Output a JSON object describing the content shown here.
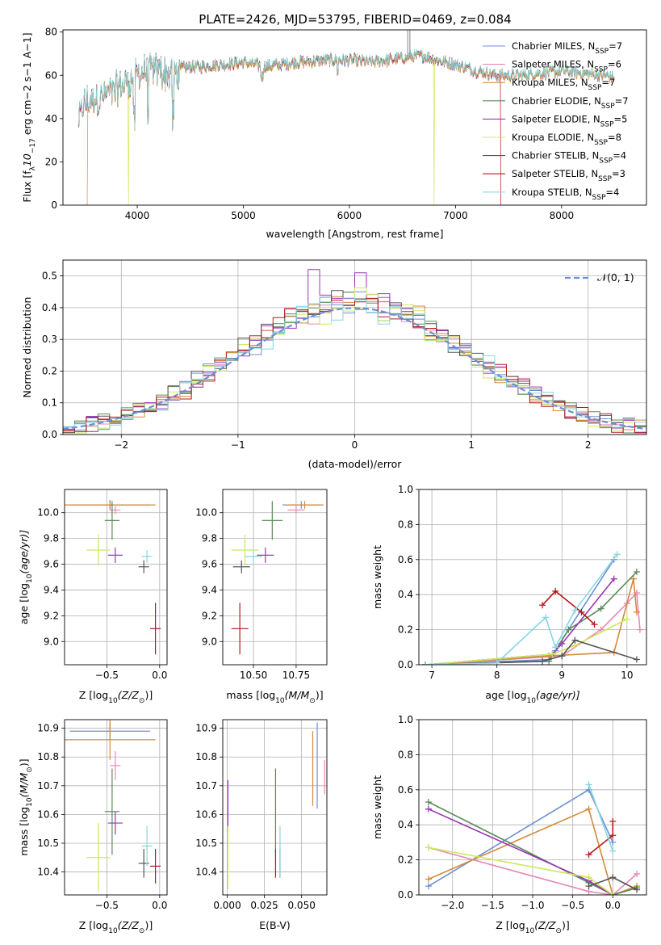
{
  "figure": {
    "title": "PLATE=2426, MJD=53795, FIBERID=0469, z=0.084",
    "models": [
      {
        "name": "Chabrier MILES, N_SSP=7",
        "base": "Chabrier MILES, N",
        "sub": "SSP",
        "tail": "=7",
        "color": "#6f8fd2"
      },
      {
        "name": "Salpeter MILES, N_SSP=6",
        "base": "Salpeter MILES, N",
        "sub": "SSP",
        "tail": "=6",
        "color": "#e58ab7"
      },
      {
        "name": "Kroupa MILES, N_SSP=7",
        "base": "Kroupa MILES, N",
        "sub": "SSP",
        "tail": "=7",
        "color": "#d48a3a"
      },
      {
        "name": "Chabrier ELODIE, N_SSP=7",
        "base": "Chabrier ELODIE, N",
        "sub": "SSP",
        "tail": "=7",
        "color": "#5a8a5a"
      },
      {
        "name": "Salpeter ELODIE, N_SSP=5",
        "base": "Salpeter ELODIE, N",
        "sub": "SSP",
        "tail": "=5",
        "color": "#9a35b5"
      },
      {
        "name": "Kroupa ELODIE, N_SSP=8",
        "base": "Kroupa ELODIE, N",
        "sub": "SSP",
        "tail": "=8",
        "color": "#cde85e"
      },
      {
        "name": "Chabrier STELIB, N_SSP=4",
        "base": "Chabrier STELIB, N",
        "sub": "SSP",
        "tail": "=4",
        "color": "#555555"
      },
      {
        "name": "Salpeter STELIB, N_SSP=3",
        "base": "Salpeter STELIB, N",
        "sub": "SSP",
        "tail": "=3",
        "color": "#b5191c"
      },
      {
        "name": "Kroupa STELIB, N_SSP=4",
        "base": "Kroupa STELIB, N",
        "sub": "SSP",
        "tail": "=4",
        "color": "#86d6e0"
      }
    ]
  },
  "chart_data": [
    {
      "id": "spectrum",
      "type": "line",
      "xlabel": "wavelength [Angstrom, rest frame]",
      "ylabel_parts": {
        "a": "Flux [f",
        "b": "λ",
        "c": "10",
        "d": "−17",
        "e": " erg cm",
        "f": "−2",
        "g": " s",
        "h": "−1",
        "i": " A",
        "j": "−1",
        "k": "]"
      },
      "xlim": [
        3300,
        8800
      ],
      "ylim": [
        0,
        81
      ],
      "xticks": [
        4000,
        5000,
        6000,
        7000,
        8000
      ],
      "yticks": [
        0,
        20,
        40,
        60,
        80
      ],
      "continuum": [
        [
          3450,
          40
        ],
        [
          3500,
          48
        ],
        [
          3600,
          50
        ],
        [
          3700,
          52
        ],
        [
          3800,
          55
        ],
        [
          3900,
          58
        ],
        [
          4000,
          62
        ],
        [
          4100,
          63
        ],
        [
          4200,
          64
        ],
        [
          4300,
          62
        ],
        [
          4400,
          63
        ],
        [
          4500,
          64
        ],
        [
          4600,
          64
        ],
        [
          4800,
          65
        ],
        [
          5000,
          66
        ],
        [
          5200,
          64
        ],
        [
          5500,
          66
        ],
        [
          5800,
          67
        ],
        [
          6000,
          67
        ],
        [
          6200,
          66
        ],
        [
          6500,
          68
        ],
        [
          6700,
          69
        ],
        [
          6900,
          66
        ],
        [
          7000,
          65
        ],
        [
          7200,
          62
        ],
        [
          7400,
          60
        ],
        [
          7600,
          60
        ],
        [
          7800,
          61
        ],
        [
          8000,
          62
        ],
        [
          8200,
          61
        ],
        [
          8400,
          60
        ],
        [
          8500,
          59
        ]
      ],
      "drops": [
        {
          "x": 3530,
          "model": 2
        },
        {
          "x": 3920,
          "model": 5
        },
        {
          "x": 6800,
          "model": 5
        },
        {
          "x": 7430,
          "model": 7
        }
      ]
    },
    {
      "id": "residuals",
      "type": "histogram",
      "xlabel": "(data-model)/error",
      "ylabel": "Normed distribution",
      "xlim": [
        -2.5,
        2.5
      ],
      "ylim": [
        0,
        0.55
      ],
      "xticks": [
        -2,
        -1,
        0,
        1,
        2
      ],
      "yticks": [
        0,
        0.1,
        0.2,
        0.3,
        0.4,
        0.5
      ],
      "bin_width": 0.1,
      "reference_curve": {
        "label": "𝒩(0, 1)",
        "mean": 0,
        "sigma": 1,
        "color": "#6a8fd8"
      }
    },
    {
      "id": "age_vs_Z",
      "type": "errorbar",
      "xlabel_parts": {
        "a": "Z [log",
        "b": "10",
        "c": "(Z/Z",
        "d": "⊙",
        "e": ")]"
      },
      "ylabel_parts": {
        "a": "age  [log",
        "b": "10",
        "c": "(age/yr)]"
      },
      "xlim": [
        -0.9,
        0.07
      ],
      "ylim": [
        8.82,
        10.18
      ],
      "xticks": [
        -0.5,
        0.0
      ],
      "xtick_labels": [
        "−0.5",
        "0.0"
      ],
      "yticks": [
        9.0,
        9.2,
        9.4,
        9.6,
        9.8,
        10.0
      ],
      "points": [
        {
          "m": 0,
          "x": -0.47,
          "xe": 0.38,
          "y": 10.06,
          "ye": 0.04
        },
        {
          "m": 1,
          "x": -0.42,
          "xe": 0.05,
          "y": 10.02,
          "ye": 0.03
        },
        {
          "m": 2,
          "x": -0.47,
          "xe": 0.43,
          "y": 10.06,
          "ye": 0.03
        },
        {
          "m": 3,
          "x": -0.45,
          "xe": 0.07,
          "y": 9.94,
          "ye": 0.15
        },
        {
          "m": 4,
          "x": -0.42,
          "xe": 0.07,
          "y": 9.67,
          "ye": 0.06
        },
        {
          "m": 5,
          "x": -0.58,
          "xe": 0.11,
          "y": 9.71,
          "ye": 0.12
        },
        {
          "m": 6,
          "x": -0.15,
          "xe": 0.05,
          "y": 9.58,
          "ye": 0.05
        },
        {
          "m": 7,
          "x": -0.04,
          "xe": 0.05,
          "y": 9.1,
          "ye": 0.2
        },
        {
          "m": 8,
          "x": -0.12,
          "xe": 0.05,
          "y": 9.66,
          "ye": 0.05
        }
      ]
    },
    {
      "id": "age_vs_mass",
      "type": "errorbar",
      "xlabel_parts": {
        "a": "mass [log",
        "b": "10",
        "c": "(M/M",
        "d": "⊙",
        "e": ")]"
      },
      "xlim": [
        10.32,
        10.93
      ],
      "ylim": [
        8.82,
        10.18
      ],
      "xticks": [
        10.5,
        10.75
      ],
      "xtick_labels": [
        "10.50",
        "10.75"
      ],
      "yticks": [
        9.0,
        9.2,
        9.4,
        9.6,
        9.8,
        10.0
      ],
      "points": [
        {
          "m": 0,
          "x": 10.78,
          "xe": 0.11,
          "y": 10.06,
          "ye": 0.03
        },
        {
          "m": 1,
          "x": 10.75,
          "xe": 0.05,
          "y": 10.02,
          "ye": 0.03
        },
        {
          "m": 2,
          "x": 10.8,
          "xe": 0.11,
          "y": 10.06,
          "ye": 0.03
        },
        {
          "m": 3,
          "x": 10.61,
          "xe": 0.06,
          "y": 9.94,
          "ye": 0.15
        },
        {
          "m": 4,
          "x": 10.57,
          "xe": 0.05,
          "y": 9.67,
          "ye": 0.06
        },
        {
          "m": 5,
          "x": 10.45,
          "xe": 0.08,
          "y": 9.71,
          "ye": 0.12
        },
        {
          "m": 6,
          "x": 10.43,
          "xe": 0.05,
          "y": 9.58,
          "ye": 0.05
        },
        {
          "m": 7,
          "x": 10.42,
          "xe": 0.05,
          "y": 9.1,
          "ye": 0.2
        },
        {
          "m": 8,
          "x": 10.5,
          "xe": 0.05,
          "y": 9.66,
          "ye": 0.05
        }
      ]
    },
    {
      "id": "mass_weight_vs_age",
      "type": "line",
      "xlabel_parts": {
        "a": "age  [log",
        "b": "10",
        "c": "(age/yr)]"
      },
      "ylabel": "mass weight",
      "xlim": [
        6.8,
        10.3
      ],
      "ylim": [
        0,
        1.0
      ],
      "xticks": [
        7,
        8,
        9,
        10
      ],
      "yticks": [
        0,
        0.2,
        0.4,
        0.6,
        0.8,
        1.0
      ],
      "series": [
        {
          "m": 0,
          "points": [
            [
              6.9,
              0.0
            ],
            [
              8.8,
              0.03
            ],
            [
              8.9,
              0.08
            ],
            [
              9.1,
              0.2
            ],
            [
              9.8,
              0.6
            ]
          ]
        },
        {
          "m": 1,
          "points": [
            [
              6.9,
              0.0
            ],
            [
              9.0,
              0.05
            ],
            [
              9.6,
              0.2
            ],
            [
              10.0,
              0.35
            ],
            [
              10.15,
              0.41
            ],
            [
              10.2,
              0.2
            ]
          ]
        },
        {
          "m": 2,
          "points": [
            [
              6.9,
              0.0
            ],
            [
              8.8,
              0.05
            ],
            [
              9.8,
              0.07
            ],
            [
              10.1,
              0.49
            ],
            [
              10.15,
              0.3
            ]
          ]
        },
        {
          "m": 3,
          "points": [
            [
              6.9,
              0.0
            ],
            [
              8.8,
              0.02
            ],
            [
              9.1,
              0.2
            ],
            [
              9.6,
              0.32
            ],
            [
              10.15,
              0.53
            ]
          ]
        },
        {
          "m": 4,
          "points": [
            [
              6.9,
              0.0
            ],
            [
              8.85,
              0.06
            ],
            [
              9.0,
              0.12
            ],
            [
              9.8,
              0.49
            ]
          ]
        },
        {
          "m": 5,
          "points": [
            [
              6.9,
              0.0
            ],
            [
              8.85,
              0.06
            ],
            [
              9.2,
              0.11
            ],
            [
              10.0,
              0.26
            ]
          ]
        },
        {
          "m": 6,
          "points": [
            [
              6.9,
              0.0
            ],
            [
              8.7,
              0.02
            ],
            [
              9.0,
              0.05
            ],
            [
              9.2,
              0.14
            ],
            [
              10.15,
              0.03
            ]
          ]
        },
        {
          "m": 7,
          "points": [
            [
              8.7,
              0.34
            ],
            [
              8.9,
              0.42
            ],
            [
              9.3,
              0.3
            ],
            [
              9.5,
              0.23
            ]
          ]
        },
        {
          "m": 8,
          "points": [
            [
              6.9,
              0.0
            ],
            [
              8.0,
              0.01
            ],
            [
              8.75,
              0.27
            ],
            [
              8.9,
              0.1
            ],
            [
              9.2,
              0.31
            ],
            [
              9.85,
              0.63
            ]
          ]
        }
      ]
    },
    {
      "id": "mass_vs_Z",
      "type": "errorbar",
      "xlabel_parts": {
        "a": "Z [log",
        "b": "10",
        "c": "(Z/Z",
        "d": "⊙",
        "e": ")]"
      },
      "ylabel_parts": {
        "a": "mass [log",
        "b": "10",
        "c": "(M/M",
        "d": "⊙",
        "e": ")]"
      },
      "xlim": [
        -0.9,
        0.07
      ],
      "ylim": [
        10.32,
        10.93
      ],
      "xticks": [
        -0.5,
        0.0
      ],
      "xtick_labels": [
        "−0.5",
        "0.0"
      ],
      "yticks": [
        10.4,
        10.5,
        10.6,
        10.7,
        10.8,
        10.9
      ],
      "points": [
        {
          "m": 0,
          "x": -0.47,
          "xe": 0.38,
          "y": 10.89,
          "ye": 0.03
        },
        {
          "m": 1,
          "x": -0.42,
          "xe": 0.05,
          "y": 10.77,
          "ye": 0.05
        },
        {
          "m": 2,
          "x": -0.47,
          "xe": 0.43,
          "y": 10.86,
          "ye": 0.07
        },
        {
          "m": 3,
          "x": -0.45,
          "xe": 0.07,
          "y": 10.61,
          "ye": 0.15
        },
        {
          "m": 4,
          "x": -0.42,
          "xe": 0.07,
          "y": 10.57,
          "ye": 0.04
        },
        {
          "m": 5,
          "x": -0.58,
          "xe": 0.11,
          "y": 10.45,
          "ye": 0.12
        },
        {
          "m": 6,
          "x": -0.15,
          "xe": 0.05,
          "y": 10.43,
          "ye": 0.05
        },
        {
          "m": 7,
          "x": -0.04,
          "xe": 0.05,
          "y": 10.42,
          "ye": 0.06
        },
        {
          "m": 8,
          "x": -0.12,
          "xe": 0.05,
          "y": 10.49,
          "ye": 0.07
        }
      ]
    },
    {
      "id": "mass_vs_ebv",
      "type": "errorbar",
      "xlabel": "E(B-V)",
      "xlim": [
        -0.003,
        0.067
      ],
      "ylim": [
        10.32,
        10.93
      ],
      "xticks": [
        0.0,
        0.025,
        0.05
      ],
      "xtick_labels": [
        "0.000",
        "0.025",
        "0.050"
      ],
      "yticks": [
        10.4,
        10.5,
        10.6,
        10.7,
        10.8,
        10.9
      ],
      "points": [
        {
          "m": 0,
          "x": 0.0605,
          "xe": 0,
          "y": 10.77,
          "ye": 0.15
        },
        {
          "m": 1,
          "x": 0.0655,
          "xe": 0,
          "y": 10.73,
          "ye": 0.06
        },
        {
          "m": 2,
          "x": 0.0575,
          "xe": 0,
          "y": 10.76,
          "ye": 0.13
        },
        {
          "m": 3,
          "x": 0.0325,
          "xe": 0,
          "y": 10.61,
          "ye": 0.15
        },
        {
          "m": 4,
          "x": 0.0005,
          "xe": 0,
          "y": 10.63,
          "ye": 0.09
        },
        {
          "m": 5,
          "x": 0.0005,
          "xe": 0,
          "y": 10.45,
          "ye": 0.11
        },
        {
          "m": 6,
          "x": 0.0355,
          "xe": 0,
          "y": 10.43,
          "ye": 0.05
        },
        {
          "m": 7,
          "x": 0.0325,
          "xe": 0,
          "y": 10.43,
          "ye": 0.05
        },
        {
          "m": 8,
          "x": 0.0355,
          "xe": 0,
          "y": 10.47,
          "ye": 0.09
        }
      ]
    },
    {
      "id": "mass_weight_vs_Z",
      "type": "line",
      "xlabel_parts": {
        "a": "Z [log",
        "b": "10",
        "c": "(Z/Z",
        "d": "⊙",
        "e": ")]"
      },
      "ylabel": "mass weight",
      "xlim": [
        -2.42,
        0.42
      ],
      "ylim": [
        0,
        1.0
      ],
      "xticks": [
        -2.0,
        -1.5,
        -1.0,
        -0.5,
        0.0
      ],
      "xtick_labels": [
        "−2.0",
        "−1.5",
        "−1.0",
        "−0.5",
        "0.0"
      ],
      "yticks": [
        0,
        0.2,
        0.4,
        0.6,
        0.8,
        1.0
      ],
      "series": [
        {
          "m": 0,
          "points": [
            [
              -2.3,
              0.05
            ],
            [
              -0.3,
              0.6
            ],
            [
              0.0,
              0.3
            ]
          ]
        },
        {
          "m": 1,
          "points": [
            [
              -2.3,
              0.27
            ],
            [
              -0.3,
              0.02
            ],
            [
              0.0,
              0.0
            ],
            [
              0.3,
              0.12
            ]
          ]
        },
        {
          "m": 2,
          "points": [
            [
              -2.3,
              0.09
            ],
            [
              -0.3,
              0.49
            ],
            [
              0.0,
              0.0
            ],
            [
              0.3,
              0.05
            ]
          ]
        },
        {
          "m": 3,
          "points": [
            [
              -2.3,
              0.53
            ],
            [
              -0.3,
              0.07
            ],
            [
              0.0,
              0.0
            ],
            [
              0.3,
              0.04
            ]
          ]
        },
        {
          "m": 4,
          "points": [
            [
              -2.3,
              0.49
            ],
            [
              -0.3,
              0.08
            ],
            [
              0.0,
              0.0
            ]
          ]
        },
        {
          "m": 5,
          "points": [
            [
              -2.3,
              0.27
            ],
            [
              -0.3,
              0.1
            ],
            [
              0.0,
              0.0
            ]
          ]
        },
        {
          "m": 6,
          "points": [
            [
              -0.3,
              0.05
            ],
            [
              0.0,
              0.1
            ],
            [
              0.3,
              0.03
            ]
          ]
        },
        {
          "m": 7,
          "points": [
            [
              -0.3,
              0.23
            ],
            [
              0.0,
              0.34
            ],
            [
              0.0,
              0.42
            ]
          ]
        },
        {
          "m": 8,
          "points": [
            [
              -0.3,
              0.63
            ],
            [
              0.0,
              0.25
            ]
          ]
        }
      ]
    }
  ]
}
